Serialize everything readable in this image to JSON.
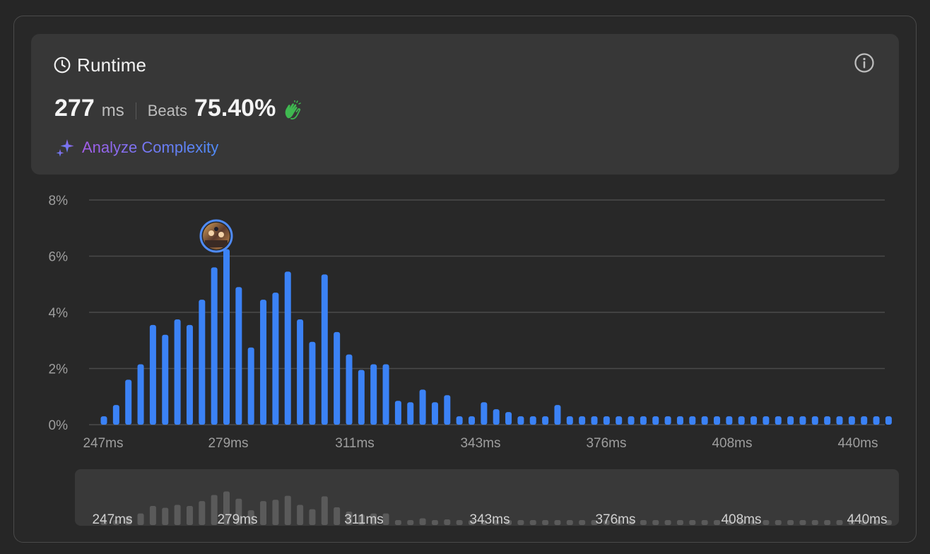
{
  "header": {
    "title": "Runtime",
    "clock_icon": "clock-icon",
    "info_icon": "info-icon"
  },
  "metric": {
    "runtime_value": "277",
    "runtime_unit": "ms",
    "beats_label": "Beats",
    "beats_value": "75.40%",
    "clap_icon": "clapping-hands-icon",
    "clap_color": "#3fb950"
  },
  "analyze": {
    "label": "Analyze Complexity",
    "icon": "sparkle-icon"
  },
  "colors": {
    "bar": "#3b82f6",
    "grid": "#4a4a4a",
    "axis_text": "#9e9e9e",
    "navigator_bar": "#5a5a5a",
    "marker_ring": "#4f8bf7"
  },
  "chart_data": {
    "type": "bar",
    "ylim": [
      0,
      8
    ],
    "y_ticks": [
      "0%",
      "2%",
      "4%",
      "6%",
      "8%"
    ],
    "x_tick_labels": [
      "247ms",
      "279ms",
      "311ms",
      "343ms",
      "376ms",
      "408ms",
      "440ms"
    ],
    "values": [
      0.3,
      0.7,
      1.6,
      2.15,
      3.55,
      3.2,
      3.75,
      3.55,
      4.45,
      5.6,
      6.25,
      4.9,
      2.75,
      4.45,
      4.7,
      5.45,
      3.75,
      2.95,
      5.35,
      3.3,
      2.5,
      1.95,
      2.15,
      2.15,
      0.85,
      0.8,
      1.25,
      0.8,
      1.05,
      0.3,
      0.3,
      0.8,
      0.55,
      0.45,
      0.3,
      0.3,
      0.3,
      0.7,
      0.3,
      0.3,
      0.3,
      0.3,
      0.3,
      0.3,
      0.3,
      0.3,
      0.3,
      0.3,
      0.3,
      0.3,
      0.3,
      0.3,
      0.3,
      0.3,
      0.3,
      0.3,
      0.3,
      0.3,
      0.3,
      0.3,
      0.3,
      0.3,
      0.3,
      0.3,
      0.3
    ],
    "highlight_index": 10,
    "grid": true,
    "legend": "none"
  },
  "navigator": {
    "x_tick_labels": [
      "247ms",
      "279ms",
      "311ms",
      "343ms",
      "376ms",
      "408ms",
      "440ms"
    ]
  }
}
